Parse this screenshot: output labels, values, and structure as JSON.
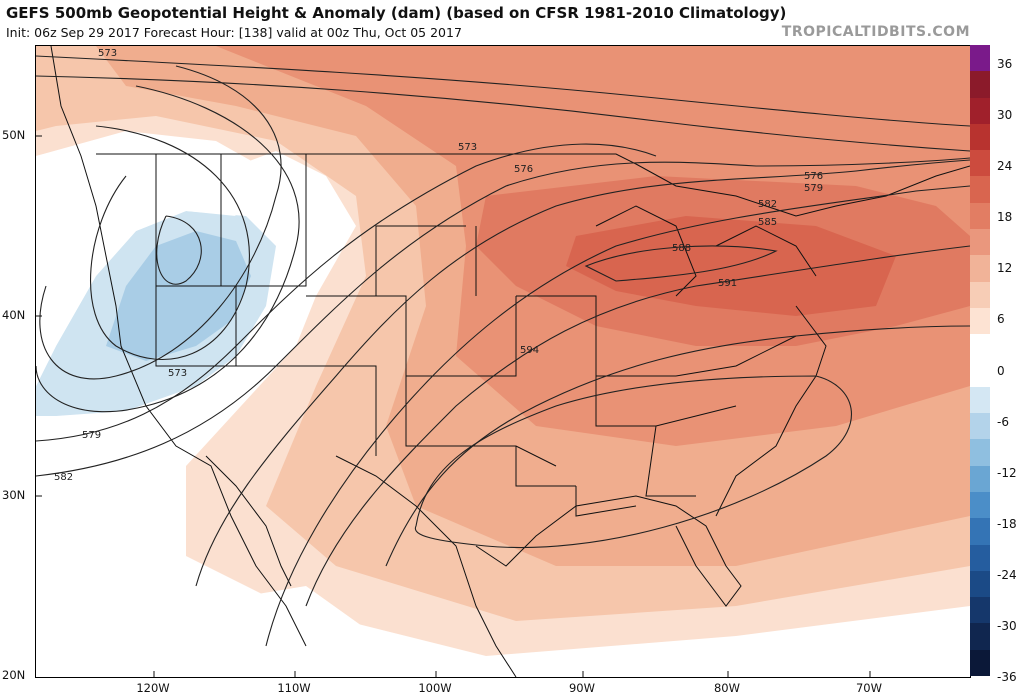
{
  "header": {
    "title": "GEFS 500mb Geopotential Height & Anomaly (dam) (based on CFSR 1981-2010 Climatology)",
    "subtitle": "Init: 06z Sep 29 2017   Forecast Hour: [138]   valid at 00z Thu, Oct 05 2017",
    "credit": "TROPICALTIDBITS.COM"
  },
  "axes": {
    "lat_labels": [
      "50N",
      "40N",
      "30N",
      "20N"
    ],
    "lon_labels": [
      "120W",
      "110W",
      "100W",
      "90W",
      "80W",
      "70W"
    ]
  },
  "colorbar": {
    "labels": [
      "36",
      "30",
      "24",
      "18",
      "12",
      "6",
      "0",
      "-6",
      "-12",
      "-18",
      "-24",
      "-30",
      "-36"
    ],
    "colors": [
      "#7a1a8a",
      "#8b1a2a",
      "#a0202b",
      "#b8332f",
      "#cc4b3e",
      "#d9654f",
      "#e27d63",
      "#ea977d",
      "#f1b398",
      "#f7cdb6",
      "#fde3d3",
      "#ffffff",
      "#ffffff",
      "#d4e7f3",
      "#b3d3ea",
      "#8fbfe0",
      "#6aa6d3",
      "#4b8ec8",
      "#3474b5",
      "#255d9f",
      "#1b4a86",
      "#15376b",
      "#10264f",
      "#0b1838"
    ]
  },
  "contours": {
    "labels": [
      "573",
      "573",
      "573",
      "576",
      "576",
      "579",
      "579",
      "582",
      "582",
      "585",
      "588",
      "591",
      "594"
    ]
  }
}
